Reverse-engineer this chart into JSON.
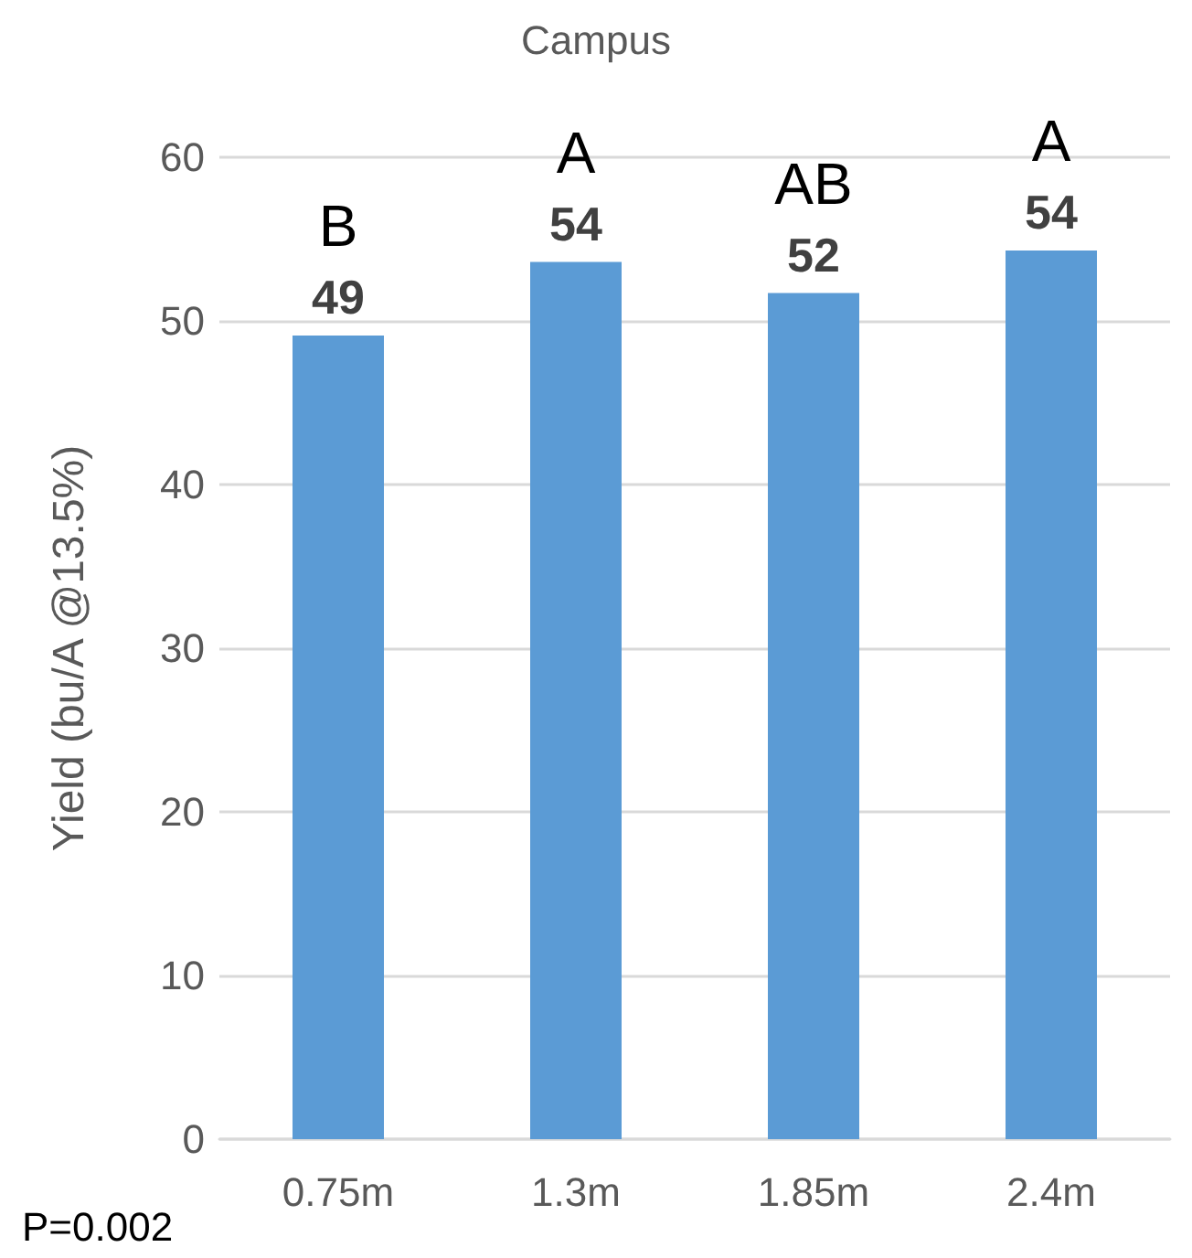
{
  "chart_data": {
    "type": "bar",
    "title": "Campus",
    "ylabel": "Yield (bu/A @13.5%)",
    "categories": [
      "0.75m",
      "1.3m",
      "1.85m",
      "2.4m"
    ],
    "values": [
      49.1,
      53.6,
      51.7,
      54.3
    ],
    "value_labels": [
      "49",
      "54",
      "52",
      "54"
    ],
    "color": "#5b9bd5",
    "ylim": [
      0,
      60
    ],
    "yticks": [
      0,
      10,
      20,
      30,
      40,
      50,
      60
    ],
    "grid": "y",
    "annotations": [
      {
        "text": "B",
        "x": "0.75m",
        "y": 49.1
      },
      {
        "text": "A",
        "x": "1.3m",
        "y": 53.6
      },
      {
        "text": "AB",
        "x": "1.85m",
        "y": 51.7
      },
      {
        "text": "A",
        "x": "2.4m",
        "y": 54.3
      },
      "P=0.002"
    ]
  }
}
